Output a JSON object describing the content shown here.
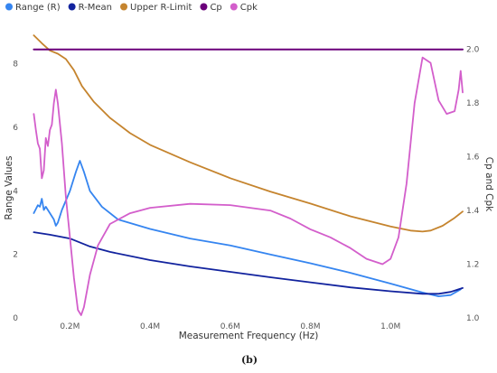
{
  "chart_data": {
    "type": "line",
    "title": "",
    "caption": "(b)",
    "xlabel": "Measurement Frequency (Hz)",
    "ylabel_left": "Range Values",
    "ylabel_right": "Cp and Cpk",
    "xlim": [
      0.1,
      1.18
    ],
    "ylim_left": [
      0,
      9.3
    ],
    "ylim_right": [
      1.0,
      2.1
    ],
    "x_ticks": [
      0.2,
      0.4,
      0.6,
      0.8,
      1.0
    ],
    "x_tick_labels": [
      "0.2M",
      "0.4M",
      "0.6M",
      "0.8M",
      "1.0M"
    ],
    "y_ticks_left": [
      0,
      2,
      4,
      6,
      8
    ],
    "y_tick_labels_left": [
      "0",
      "2",
      "4",
      "6",
      "8"
    ],
    "y_ticks_right": [
      1.0,
      1.2,
      1.4,
      1.6,
      1.8,
      2.0
    ],
    "y_tick_labels_right": [
      "1.0",
      "1.2",
      "1.4",
      "1.6",
      "1.8",
      "2.0"
    ],
    "legend_position": "top-left",
    "grid": false,
    "series": [
      {
        "name": "Range (R)",
        "axis": "left",
        "color": "#3585f0",
        "points": [
          [
            0.11,
            3.3
          ],
          [
            0.12,
            3.55
          ],
          [
            0.125,
            3.5
          ],
          [
            0.13,
            3.75
          ],
          [
            0.135,
            3.4
          ],
          [
            0.14,
            3.5
          ],
          [
            0.15,
            3.3
          ],
          [
            0.16,
            3.1
          ],
          [
            0.165,
            2.9
          ],
          [
            0.17,
            3.0
          ],
          [
            0.18,
            3.4
          ],
          [
            0.2,
            4.0
          ],
          [
            0.215,
            4.6
          ],
          [
            0.225,
            4.95
          ],
          [
            0.235,
            4.6
          ],
          [
            0.25,
            4.0
          ],
          [
            0.28,
            3.5
          ],
          [
            0.32,
            3.1
          ],
          [
            0.4,
            2.8
          ],
          [
            0.5,
            2.5
          ],
          [
            0.6,
            2.28
          ],
          [
            0.7,
            2.0
          ],
          [
            0.8,
            1.72
          ],
          [
            0.9,
            1.42
          ],
          [
            1.0,
            1.08
          ],
          [
            1.08,
            0.8
          ],
          [
            1.12,
            0.68
          ],
          [
            1.15,
            0.72
          ],
          [
            1.175,
            0.9
          ]
        ]
      },
      {
        "name": "R-Mean",
        "axis": "left",
        "color": "#12239e",
        "points": [
          [
            0.11,
            2.7
          ],
          [
            0.15,
            2.62
          ],
          [
            0.2,
            2.5
          ],
          [
            0.25,
            2.25
          ],
          [
            0.3,
            2.08
          ],
          [
            0.4,
            1.82
          ],
          [
            0.5,
            1.62
          ],
          [
            0.6,
            1.45
          ],
          [
            0.7,
            1.28
          ],
          [
            0.8,
            1.12
          ],
          [
            0.9,
            0.96
          ],
          [
            1.0,
            0.84
          ],
          [
            1.08,
            0.76
          ],
          [
            1.12,
            0.76
          ],
          [
            1.15,
            0.82
          ],
          [
            1.18,
            0.94
          ]
        ]
      },
      {
        "name": "Upper R-Limit",
        "axis": "left",
        "color": "#c5842e",
        "points": [
          [
            0.11,
            8.9
          ],
          [
            0.13,
            8.65
          ],
          [
            0.15,
            8.42
          ],
          [
            0.17,
            8.32
          ],
          [
            0.19,
            8.15
          ],
          [
            0.21,
            7.8
          ],
          [
            0.23,
            7.3
          ],
          [
            0.26,
            6.8
          ],
          [
            0.3,
            6.3
          ],
          [
            0.35,
            5.82
          ],
          [
            0.4,
            5.45
          ],
          [
            0.5,
            4.9
          ],
          [
            0.6,
            4.4
          ],
          [
            0.7,
            3.98
          ],
          [
            0.8,
            3.6
          ],
          [
            0.9,
            3.2
          ],
          [
            1.0,
            2.88
          ],
          [
            1.05,
            2.75
          ],
          [
            1.08,
            2.72
          ],
          [
            1.1,
            2.75
          ],
          [
            1.13,
            2.9
          ],
          [
            1.16,
            3.15
          ],
          [
            1.18,
            3.35
          ]
        ]
      },
      {
        "name": "Cp",
        "axis": "right",
        "color": "#6b007b",
        "points": [
          [
            0.11,
            2.0
          ],
          [
            1.18,
            2.0
          ]
        ]
      },
      {
        "name": "Cpk",
        "axis": "right",
        "color": "#d35ecb",
        "points": [
          [
            0.11,
            1.76
          ],
          [
            0.115,
            1.7
          ],
          [
            0.12,
            1.65
          ],
          [
            0.125,
            1.63
          ],
          [
            0.13,
            1.52
          ],
          [
            0.135,
            1.55
          ],
          [
            0.14,
            1.67
          ],
          [
            0.145,
            1.64
          ],
          [
            0.15,
            1.7
          ],
          [
            0.155,
            1.72
          ],
          [
            0.16,
            1.8
          ],
          [
            0.165,
            1.85
          ],
          [
            0.17,
            1.8
          ],
          [
            0.18,
            1.65
          ],
          [
            0.19,
            1.45
          ],
          [
            0.2,
            1.3
          ],
          [
            0.21,
            1.15
          ],
          [
            0.22,
            1.03
          ],
          [
            0.228,
            1.01
          ],
          [
            0.235,
            1.04
          ],
          [
            0.25,
            1.16
          ],
          [
            0.27,
            1.27
          ],
          [
            0.3,
            1.35
          ],
          [
            0.35,
            1.39
          ],
          [
            0.4,
            1.41
          ],
          [
            0.5,
            1.425
          ],
          [
            0.6,
            1.42
          ],
          [
            0.7,
            1.4
          ],
          [
            0.75,
            1.37
          ],
          [
            0.8,
            1.33
          ],
          [
            0.85,
            1.3
          ],
          [
            0.9,
            1.26
          ],
          [
            0.94,
            1.22
          ],
          [
            0.98,
            1.2
          ],
          [
            1.0,
            1.22
          ],
          [
            1.02,
            1.3
          ],
          [
            1.04,
            1.5
          ],
          [
            1.06,
            1.8
          ],
          [
            1.08,
            1.97
          ],
          [
            1.1,
            1.95
          ],
          [
            1.12,
            1.81
          ],
          [
            1.14,
            1.76
          ],
          [
            1.16,
            1.77
          ],
          [
            1.17,
            1.85
          ],
          [
            1.175,
            1.92
          ],
          [
            1.18,
            1.84
          ]
        ]
      }
    ]
  }
}
